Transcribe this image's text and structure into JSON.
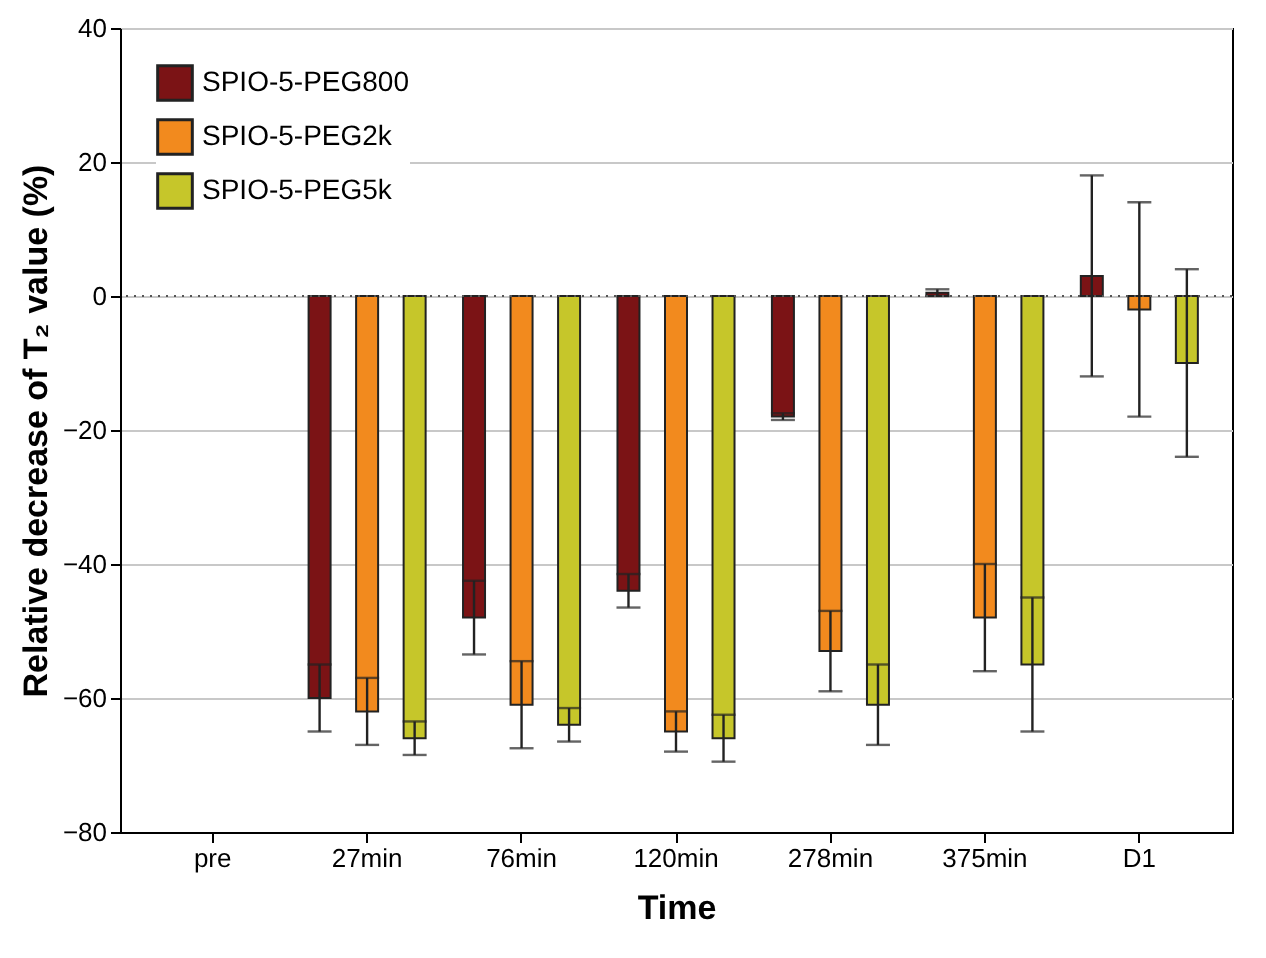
{
  "chart_data": {
    "type": "bar",
    "xlabel": "Time",
    "ylabel": "Relative decrease of T₂ value (%)",
    "categories": [
      "pre",
      "27min",
      "76min",
      "120min",
      "278min",
      "375min",
      "D1"
    ],
    "series": [
      {
        "name": "SPIO-5-PEG800",
        "color": "#7b1315",
        "values": [
          null,
          -60,
          -48,
          -44,
          -18,
          0.5,
          3
        ],
        "errors": [
          null,
          5,
          5.5,
          2.5,
          0.5,
          0.5,
          15
        ]
      },
      {
        "name": "SPIO-5-PEG2k",
        "color": "#f28a1e",
        "values": [
          null,
          -62,
          -61,
          -65,
          -53,
          -48,
          -2
        ],
        "errors": [
          null,
          5,
          6.5,
          3,
          6,
          8,
          16
        ]
      },
      {
        "name": "SPIO-5-PEG5k",
        "color": "#c6c62a",
        "values": [
          null,
          -66,
          -64,
          -66,
          -61,
          -55,
          -10
        ],
        "errors": [
          null,
          2.5,
          2.5,
          3.5,
          6,
          10,
          14
        ]
      }
    ],
    "ylim": [
      -80,
      40
    ],
    "yticks": [
      -80,
      -60,
      -40,
      -20,
      0,
      20,
      40
    ],
    "grid": "y",
    "legend": "top left",
    "ref_lines": [
      {
        "axis": "y",
        "value": 0,
        "line_style": "dotted",
        "color": "#555555"
      }
    ]
  }
}
